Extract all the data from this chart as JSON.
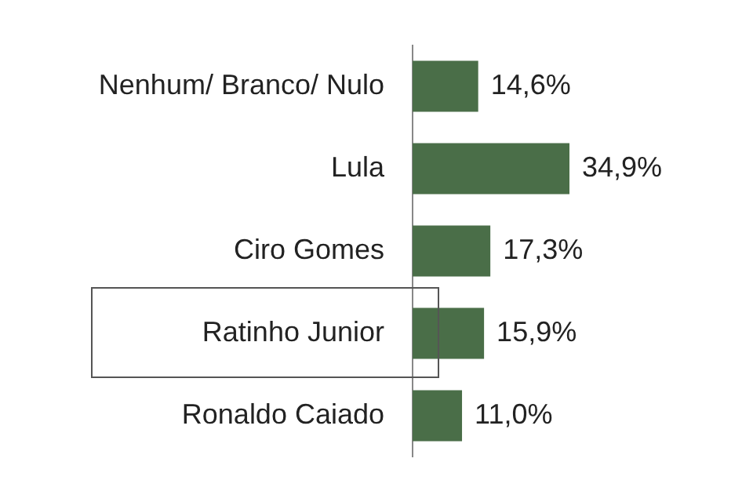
{
  "chart_data": {
    "type": "bar",
    "orientation": "horizontal",
    "categories": [
      "Nenhum/ Branco/ Nulo",
      "Lula",
      "Ciro Gomes",
      "Ratinho Junior",
      "Ronaldo Caiado"
    ],
    "values": [
      14.6,
      34.9,
      17.3,
      15.9,
      11.0
    ],
    "value_labels": [
      "14,6%",
      "34,9%",
      "17,3%",
      "15,9%",
      "11,0%"
    ],
    "color": "#4a6e48"
  }
}
